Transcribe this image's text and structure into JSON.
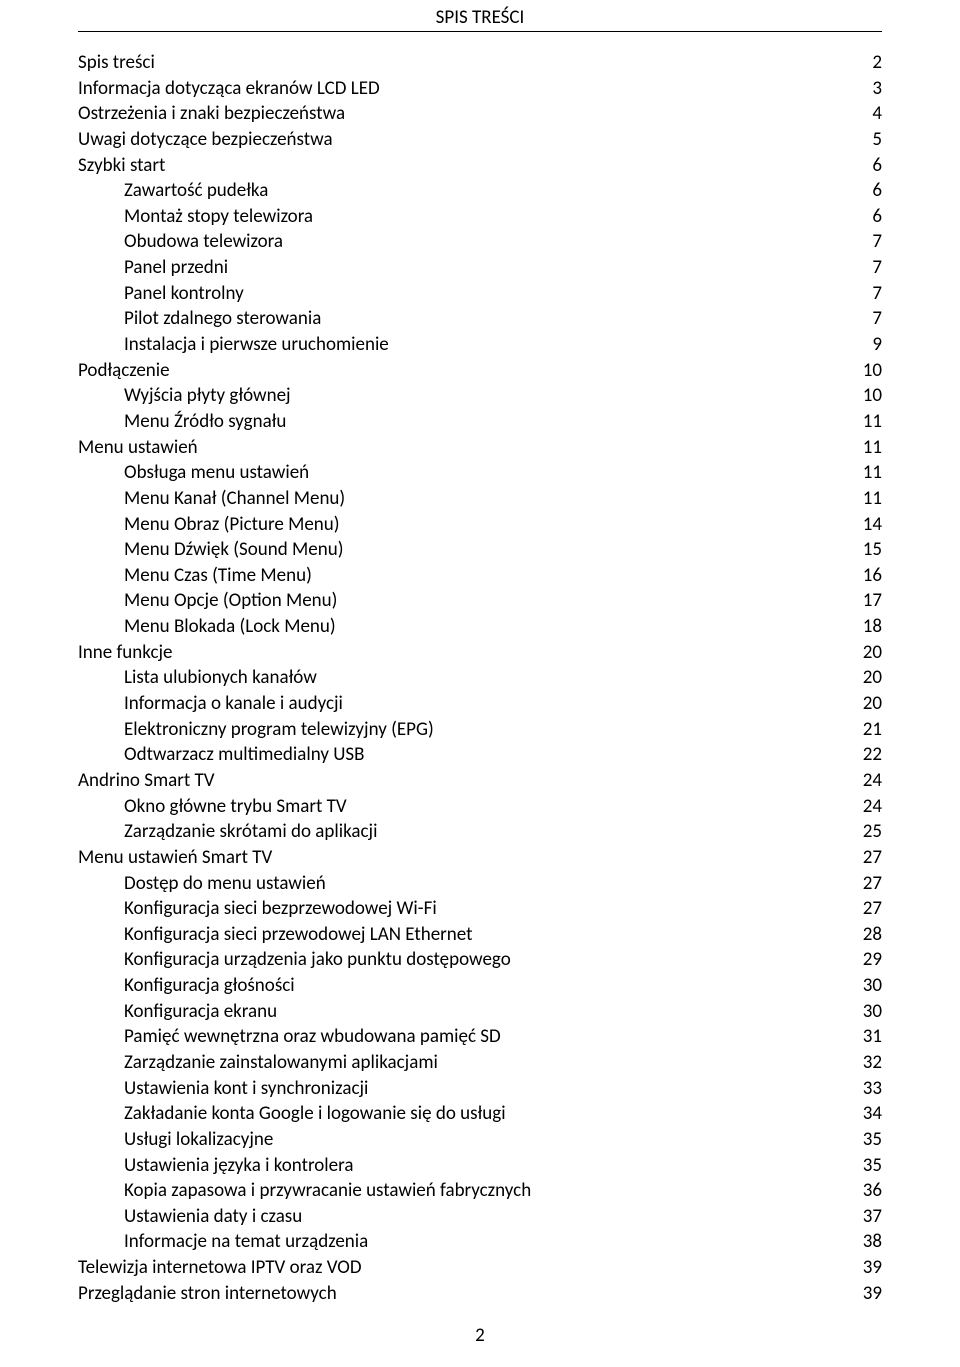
{
  "header": {
    "title": "SPIS TREŚCI"
  },
  "toc": {
    "items": [
      {
        "label": "Spis treści",
        "page": "2",
        "indent": 0
      },
      {
        "label": "Informacja dotycząca ekranów LCD LED",
        "page": "3",
        "indent": 0
      },
      {
        "label": "Ostrzeżenia i znaki bezpieczeństwa",
        "page": "4",
        "indent": 0
      },
      {
        "label": "Uwagi dotyczące bezpieczeństwa",
        "page": "5",
        "indent": 0
      },
      {
        "label": "Szybki start",
        "page": "6",
        "indent": 0
      },
      {
        "label": "Zawartość pudełka",
        "page": "6",
        "indent": 1
      },
      {
        "label": "Montaż stopy telewizora",
        "page": "6",
        "indent": 1
      },
      {
        "label": "Obudowa telewizora",
        "page": "7",
        "indent": 1
      },
      {
        "label": "Panel przedni",
        "page": "7",
        "indent": 1
      },
      {
        "label": "Panel kontrolny",
        "page": "7",
        "indent": 1
      },
      {
        "label": "Pilot zdalnego sterowania",
        "page": "7",
        "indent": 1
      },
      {
        "label": "Instalacja i pierwsze uruchomienie",
        "page": "9",
        "indent": 1
      },
      {
        "label": "Podłączenie",
        "page": "10",
        "indent": 0
      },
      {
        "label": "Wyjścia płyty głównej",
        "page": "10",
        "indent": 1
      },
      {
        "label": "Menu Źródło sygnału",
        "page": "11",
        "indent": 1
      },
      {
        "label": "Menu ustawień",
        "page": "11",
        "indent": 0
      },
      {
        "label": "Obsługa menu ustawień",
        "page": "11",
        "indent": 1
      },
      {
        "label": "Menu Kanał (Channel Menu)",
        "page": "11",
        "indent": 1
      },
      {
        "label": "Menu Obraz (Picture Menu)",
        "page": "14",
        "indent": 1
      },
      {
        "label": "Menu Dźwięk (Sound Menu)",
        "page": "15",
        "indent": 1
      },
      {
        "label": "Menu Czas (Time Menu)",
        "page": "16",
        "indent": 1
      },
      {
        "label": "Menu Opcje (Option Menu)",
        "page": "17",
        "indent": 1
      },
      {
        "label": "Menu Blokada (Lock Menu)",
        "page": "18",
        "indent": 1
      },
      {
        "label": "Inne funkcje",
        "page": "20",
        "indent": 0
      },
      {
        "label": "Lista ulubionych kanałów",
        "page": "20",
        "indent": 1
      },
      {
        "label": "Informacja o kanale i audycji",
        "page": "20",
        "indent": 1
      },
      {
        "label": "Elektroniczny program telewizyjny (EPG)",
        "page": "21",
        "indent": 1
      },
      {
        "label": "Odtwarzacz multimedialny USB",
        "page": "22",
        "indent": 1
      },
      {
        "label": "Andrino Smart TV",
        "page": "24",
        "indent": 0
      },
      {
        "label": "Okno główne trybu Smart TV",
        "page": "24",
        "indent": 1
      },
      {
        "label": "Zarządzanie skrótami do aplikacji",
        "page": "25",
        "indent": 1
      },
      {
        "label": "Menu ustawień Smart TV",
        "page": "27",
        "indent": 0
      },
      {
        "label": "Dostęp do menu ustawień",
        "page": "27",
        "indent": 1
      },
      {
        "label": "Konfiguracja sieci bezprzewodowej Wi-Fi",
        "page": "27",
        "indent": 1
      },
      {
        "label": "Konfiguracja sieci przewodowej LAN Ethernet",
        "page": "28",
        "indent": 1
      },
      {
        "label": "Konfiguracja urządzenia jako punktu dostępowego",
        "page": "29",
        "indent": 1
      },
      {
        "label": "Konfiguracja głośności",
        "page": "30",
        "indent": 1
      },
      {
        "label": "Konfiguracja ekranu",
        "page": "30",
        "indent": 1
      },
      {
        "label": "Pamięć wewnętrzna oraz wbudowana pamięć SD",
        "page": "31",
        "indent": 1
      },
      {
        "label": "Zarządzanie zainstalowanymi aplikacjami",
        "page": "32",
        "indent": 1
      },
      {
        "label": "Ustawienia kont i synchronizacji",
        "page": "33",
        "indent": 1
      },
      {
        "label": "Zakładanie konta Google i logowanie się do usługi",
        "page": "34",
        "indent": 1
      },
      {
        "label": "Usługi lokalizacyjne",
        "page": "35",
        "indent": 1
      },
      {
        "label": "Ustawienia języka i kontrolera",
        "page": "35",
        "indent": 1
      },
      {
        "label": "Kopia zapasowa i przywracanie ustawień fabrycznych",
        "page": "36",
        "indent": 1
      },
      {
        "label": "Ustawienia daty i czasu",
        "page": "37",
        "indent": 1
      },
      {
        "label": "Informacje na temat urządzenia",
        "page": "38",
        "indent": 1
      },
      {
        "label": "Telewizja internetowa IPTV oraz VOD",
        "page": "39",
        "indent": 0
      },
      {
        "label": "Przeglądanie stron internetowych",
        "page": "39",
        "indent": 0
      }
    ]
  },
  "footer": {
    "page_number": "2"
  }
}
